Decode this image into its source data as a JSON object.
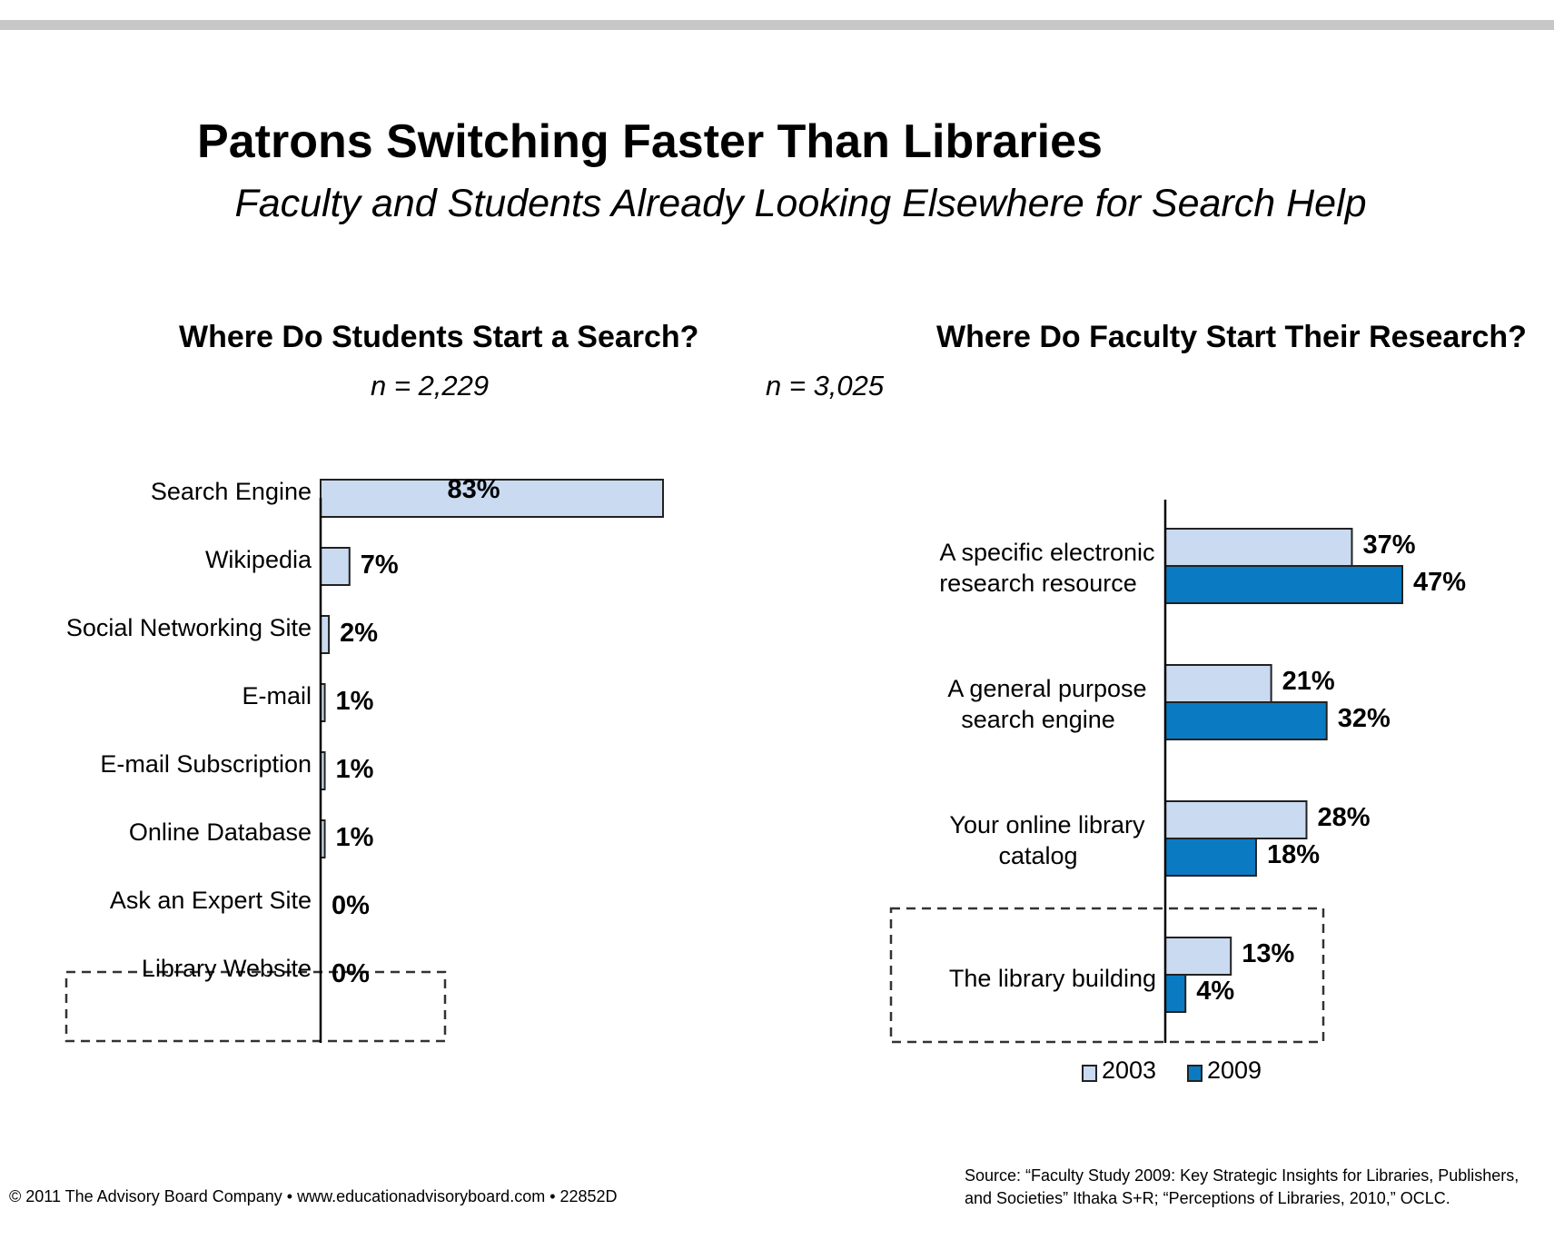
{
  "title": "Patrons Switching Faster Than Libraries",
  "subtitle": "Faculty and Students Already Looking Elsewhere for Search Help",
  "chart_data": [
    {
      "type": "bar",
      "orientation": "horizontal",
      "title": "Where Do Students Start a Search?",
      "n_label": "n = 2,229",
      "categories": [
        "Search Engine",
        "Wikipedia",
        "Social Networking Site",
        "E-mail",
        "E-mail Subscription",
        "Online Database",
        "Ask an Expert Site",
        "Library Website"
      ],
      "values": [
        83,
        7,
        2,
        1,
        1,
        1,
        0,
        0
      ],
      "data_labels": [
        "83%",
        "7%",
        "2%",
        "1%",
        "1%",
        "1%",
        "0%",
        "0%"
      ],
      "highlighted_category": "Library Website",
      "color": "#c9daf1",
      "xlim": [
        0,
        100
      ]
    },
    {
      "type": "bar",
      "orientation": "horizontal",
      "title": "Where Do Faculty Start Their Research?",
      "n_label": "n = 3,025",
      "categories": [
        [
          "A specific electronic",
          "research resource"
        ],
        [
          "A general purpose",
          "search engine"
        ],
        [
          "Your online library",
          "catalog"
        ],
        [
          "The library building"
        ]
      ],
      "series": [
        {
          "name": "2003",
          "values": [
            37,
            21,
            28,
            13
          ],
          "data_labels": [
            "37%",
            "21%",
            "28%",
            "13%"
          ],
          "color": "#c9daf1"
        },
        {
          "name": "2009",
          "values": [
            47,
            32,
            18,
            4
          ],
          "data_labels": [
            "47%",
            "32%",
            "18%",
            "4%"
          ],
          "color": "#0a7bc2"
        }
      ],
      "highlighted_category": "The library building",
      "legend": "bottom",
      "xlim": [
        0,
        100
      ]
    }
  ],
  "footer": "© 2011 The Advisory Board Company • www.educationadvisoryboard.com  •  22852D",
  "source_lines": [
    "Source: “Faculty Study 2009: Key Strategic Insights for Libraries, Publishers,",
    "and Societies” Ithaka S+R; “Perceptions of Libraries, 2010,” OCLC."
  ]
}
